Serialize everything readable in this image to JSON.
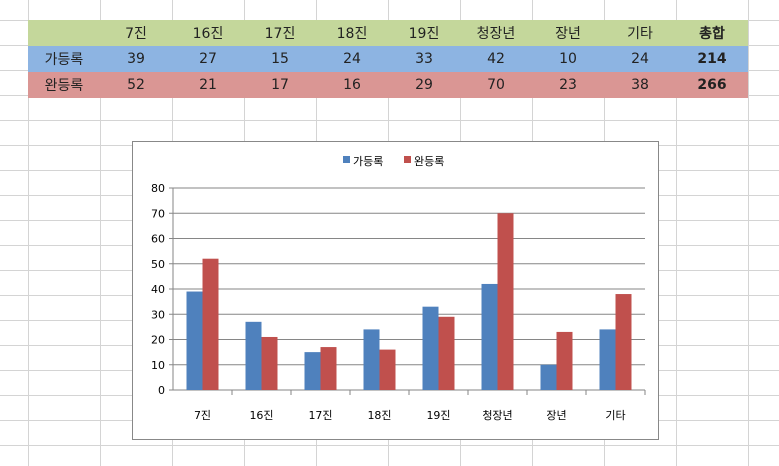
{
  "table": {
    "header": [
      "",
      "7진",
      "16진",
      "17진",
      "18진",
      "19진",
      "청장년",
      "장년",
      "기타",
      "총합"
    ],
    "rows": [
      {
        "label": "가등록",
        "values": [
          "39",
          "27",
          "15",
          "24",
          "33",
          "42",
          "10",
          "24"
        ],
        "total": "214",
        "color": "#8db4e2"
      },
      {
        "label": "완등록",
        "values": [
          "52",
          "21",
          "17",
          "16",
          "29",
          "70",
          "23",
          "38"
        ],
        "total": "266",
        "color": "#da9694"
      }
    ],
    "header_color": "#c4d79b"
  },
  "chart_data": {
    "type": "bar",
    "categories": [
      "7진",
      "16진",
      "17진",
      "18진",
      "19진",
      "청장년",
      "장년",
      "기타"
    ],
    "series": [
      {
        "name": "가등록",
        "values": [
          39,
          27,
          15,
          24,
          33,
          42,
          10,
          24
        ],
        "color": "#4f81bd"
      },
      {
        "name": "완등록",
        "values": [
          52,
          21,
          17,
          16,
          29,
          70,
          23,
          38
        ],
        "color": "#c0504d"
      }
    ],
    "ylim": [
      0,
      80
    ],
    "yticks": [
      0,
      10,
      20,
      30,
      40,
      50,
      60,
      70,
      80
    ],
    "grid": true,
    "legend": "top"
  }
}
